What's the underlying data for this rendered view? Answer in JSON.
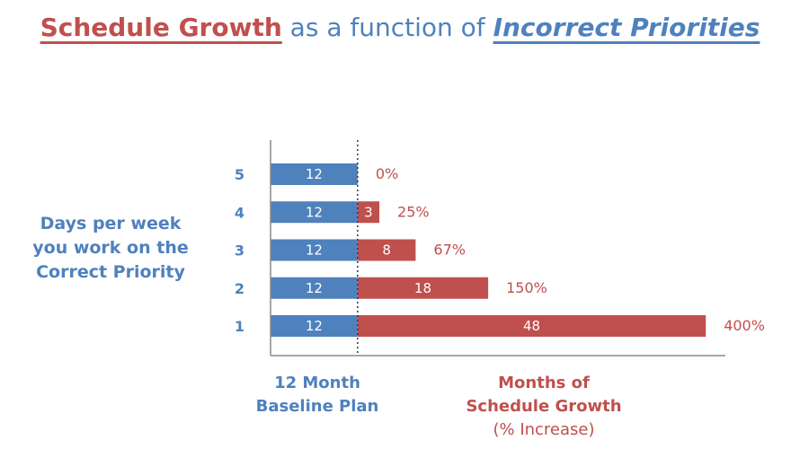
{
  "title": {
    "part1": "Schedule Growth",
    "part2": " as a function of ",
    "part3": "Incorrect Priorities"
  },
  "side_label": [
    "Days per week",
    "you work on the",
    "Correct Priority"
  ],
  "bottom_left_label": [
    "12 Month",
    "Baseline Plan"
  ],
  "bottom_right_label": [
    "Months of",
    "Schedule Growth",
    "(% Increase)"
  ],
  "colors": {
    "blue": "#4f81bd",
    "red": "#c0504d"
  },
  "chart_data": {
    "type": "bar",
    "orientation": "horizontal",
    "stacked": true,
    "categories": [
      "5",
      "4",
      "3",
      "2",
      "1"
    ],
    "series": [
      {
        "values": [
          12,
          12,
          12,
          12,
          12
        ]
      },
      {
        "values": [
          0,
          3,
          8,
          18,
          48
        ]
      }
    ],
    "value_labels_series1": [
      "12",
      "12",
      "12",
      "12",
      "12"
    ],
    "value_labels_series2": [
      "",
      "3",
      "8",
      "18",
      "48"
    ],
    "percent_labels": [
      "0%",
      "25%",
      "67%",
      "150%",
      "400%"
    ],
    "xlim": [
      0,
      60
    ],
    "reference_line_at": 12,
    "grid": false
  }
}
